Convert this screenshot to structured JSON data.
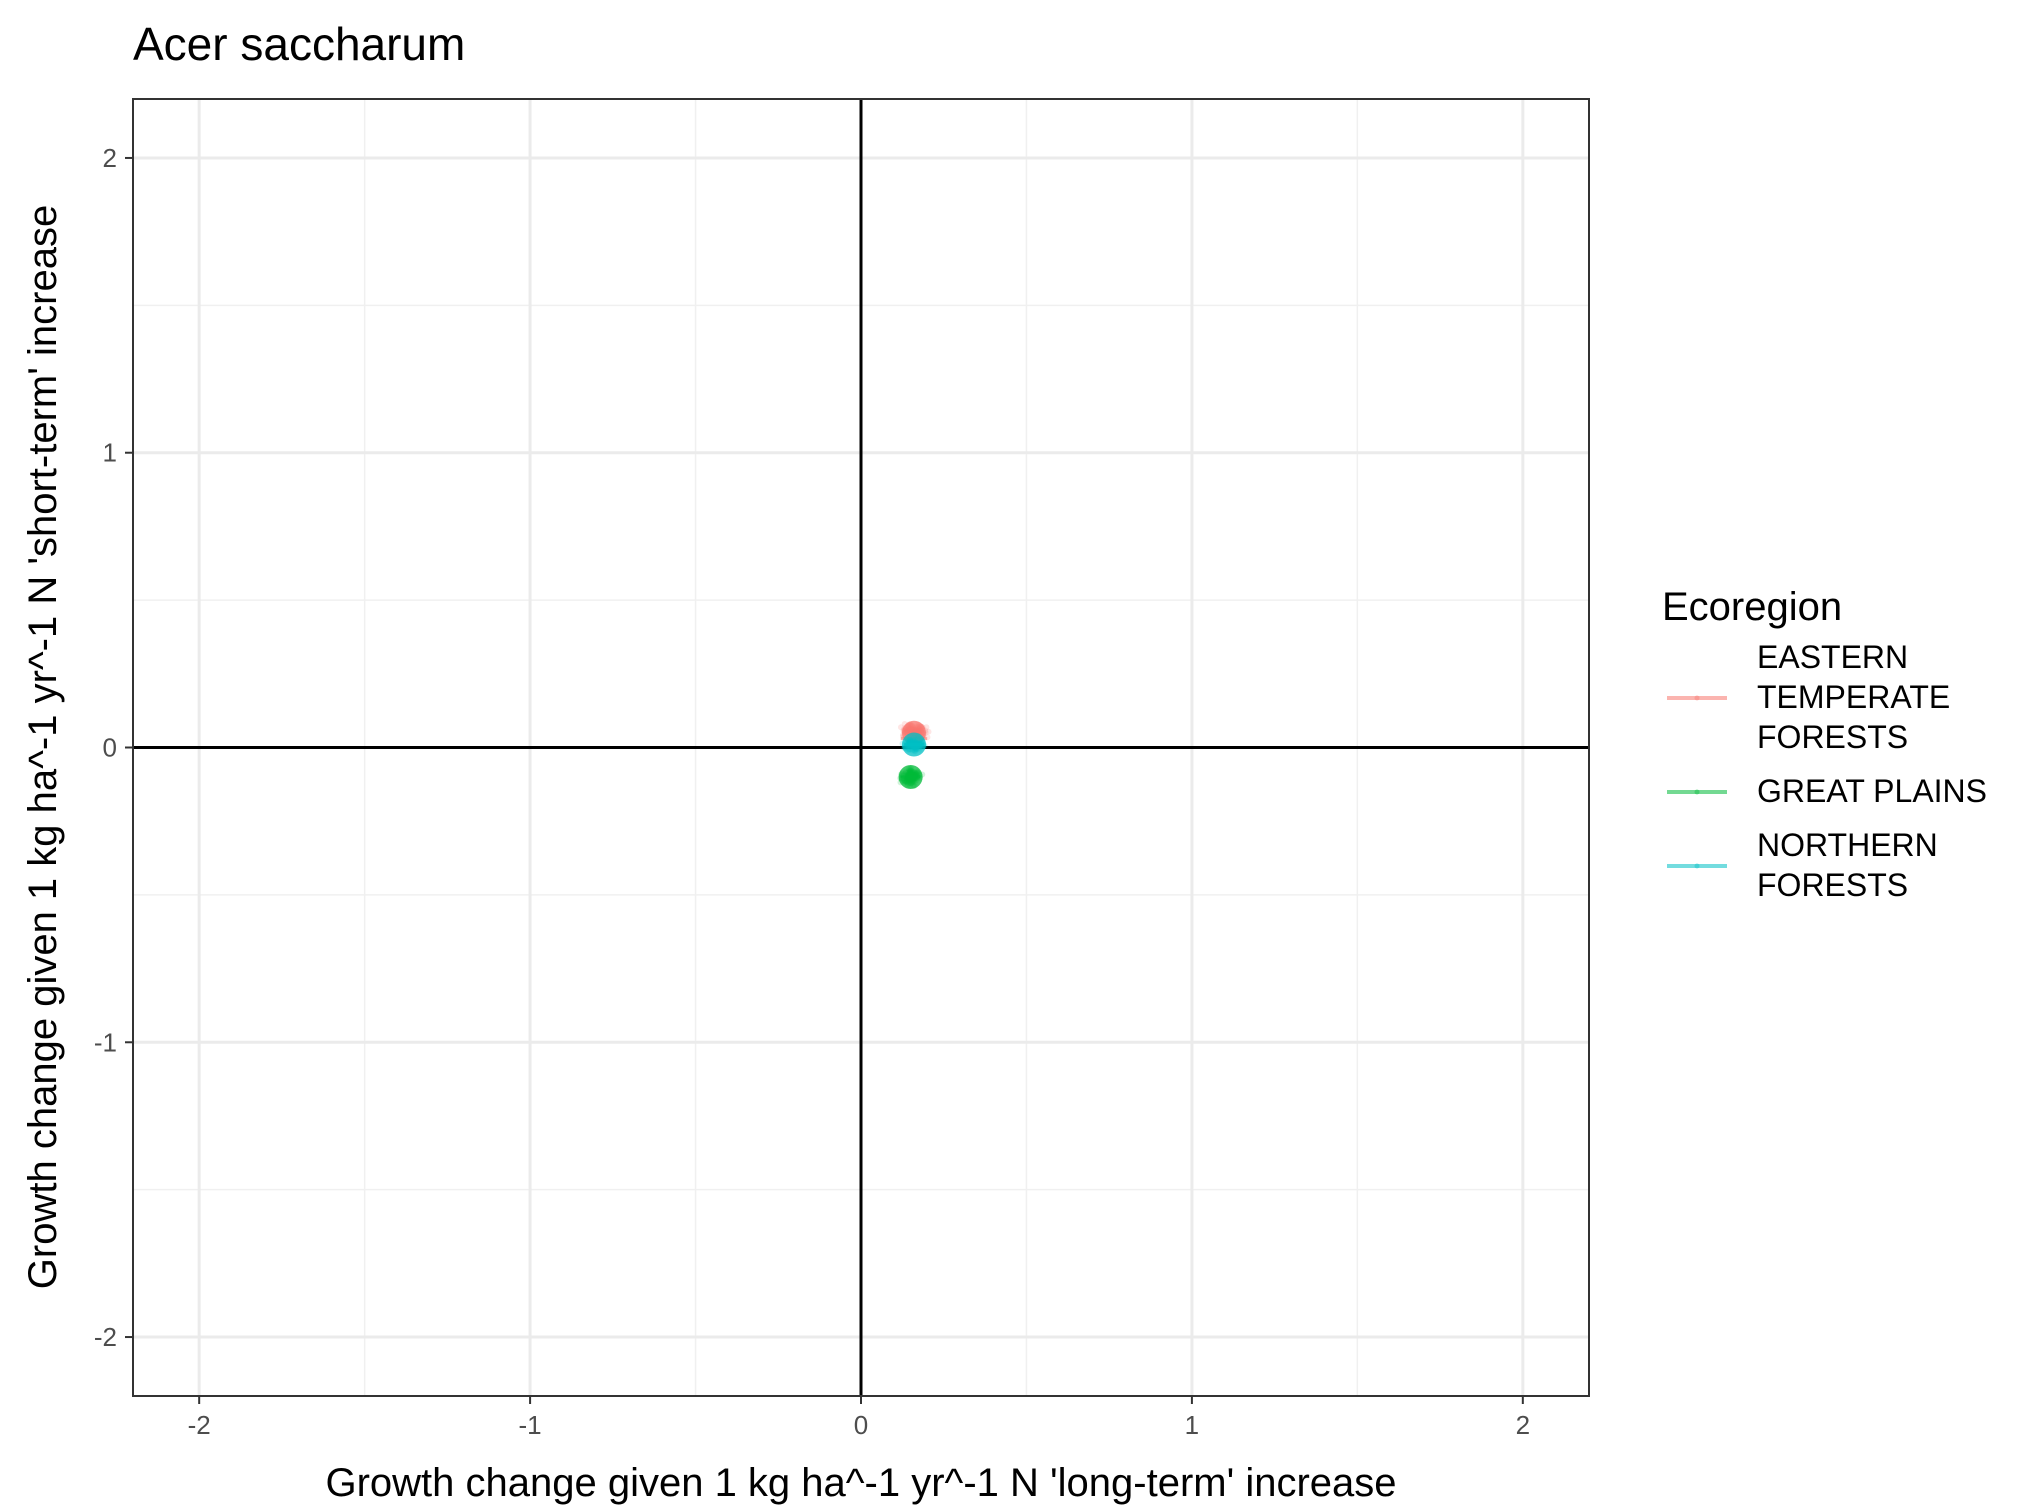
{
  "chart_data": {
    "type": "scatter",
    "title": "Acer saccharum",
    "xlabel": "Growth change given 1 kg ha^-1 yr^-1 N 'long-term' increase",
    "ylabel": "Growth change given 1 kg ha^-1 yr^-1 N 'short-term' increase",
    "xlim": [
      -2.2,
      2.2
    ],
    "ylim": [
      -2.2,
      2.2
    ],
    "x_ticks": [
      "-2",
      "-1",
      "0",
      "1",
      "2"
    ],
    "y_ticks": [
      "2",
      "1",
      "0",
      "-1",
      "-2"
    ],
    "grid": true,
    "reference_lines": {
      "x": 0,
      "y": 0
    },
    "legend": {
      "title": "Ecoregion",
      "position": "right"
    },
    "series": [
      {
        "name": "EASTERN TEMPERATE FORESTS",
        "label_lines": [
          "EASTERN",
          "TEMPERATE",
          "FORESTS"
        ],
        "color": "#F8766D",
        "center": [
          0.16,
          0.05
        ],
        "spread": [
          0.03,
          0.025
        ],
        "mean_line": [
          [
            0.12,
            0.03
          ],
          [
            0.2,
            0.03
          ]
        ]
      },
      {
        "name": "GREAT PLAINS",
        "label_lines": [
          "GREAT PLAINS"
        ],
        "color": "#00BA38",
        "center": [
          0.15,
          -0.1
        ],
        "spread": [
          0.025,
          0.025
        ],
        "mean_line": [
          [
            0.12,
            -0.1
          ],
          [
            0.18,
            -0.1
          ]
        ]
      },
      {
        "name": "NORTHERN FORESTS",
        "label_lines": [
          "NORTHERN",
          "FORESTS"
        ],
        "color": "#00BFC4",
        "center": [
          0.16,
          0.01
        ],
        "spread": [
          0.025,
          0.02
        ],
        "mean_line": [
          [
            0.13,
            0.01
          ],
          [
            0.19,
            0.01
          ]
        ]
      }
    ]
  }
}
